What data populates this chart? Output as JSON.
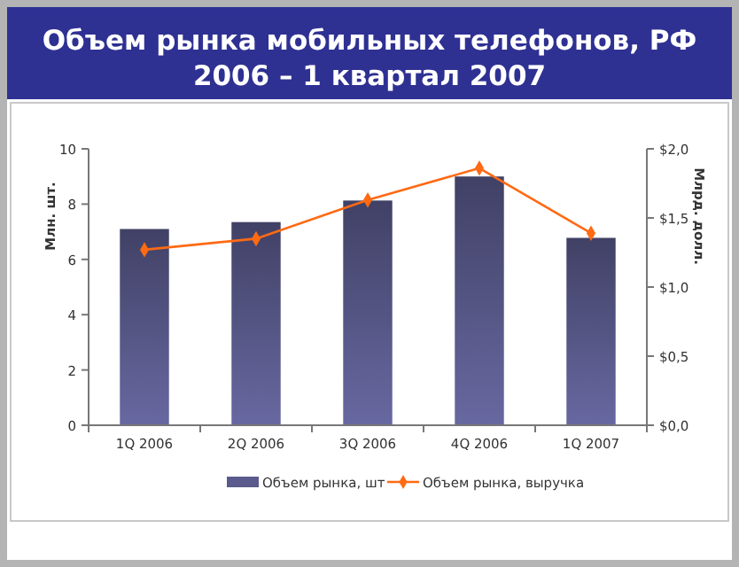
{
  "chart_data": {
    "type": "bar",
    "title": "Объем рынка мобильных телефонов, РФ\n2006 – 1 квартал 2007",
    "categories": [
      "1Q 2006",
      "2Q 2006",
      "3Q 2006",
      "4Q 2006",
      "1Q 2007"
    ],
    "series": [
      {
        "name": "Объем рынка, шт",
        "color": "#5a5a8c",
        "values": [
          7.1,
          7.35,
          8.13,
          9.0,
          6.78
        ]
      },
      {
        "name": "Объем рынка, выручка",
        "type": "line",
        "axis": "y2",
        "color": "#ff6a13",
        "values": [
          1.27,
          1.35,
          1.63,
          1.86,
          1.39
        ]
      }
    ],
    "ylabel": "Млн. шт.",
    "y2label": "Млрд. долл.",
    "ylim": [
      0,
      10
    ],
    "yticks": [
      0,
      2,
      4,
      6,
      8,
      10
    ],
    "y2lim": [
      0,
      2
    ],
    "y2ticks": [
      {
        "value": 0,
        "label": "$0,0"
      },
      {
        "value": 0.5,
        "label": "$0,5"
      },
      {
        "value": 1,
        "label": "$1,0"
      },
      {
        "value": 1.5,
        "label": "$1,5"
      },
      {
        "value": 2,
        "label": "$2,0"
      }
    ],
    "legend": "bottom",
    "marker": "diamond",
    "grid": false
  }
}
